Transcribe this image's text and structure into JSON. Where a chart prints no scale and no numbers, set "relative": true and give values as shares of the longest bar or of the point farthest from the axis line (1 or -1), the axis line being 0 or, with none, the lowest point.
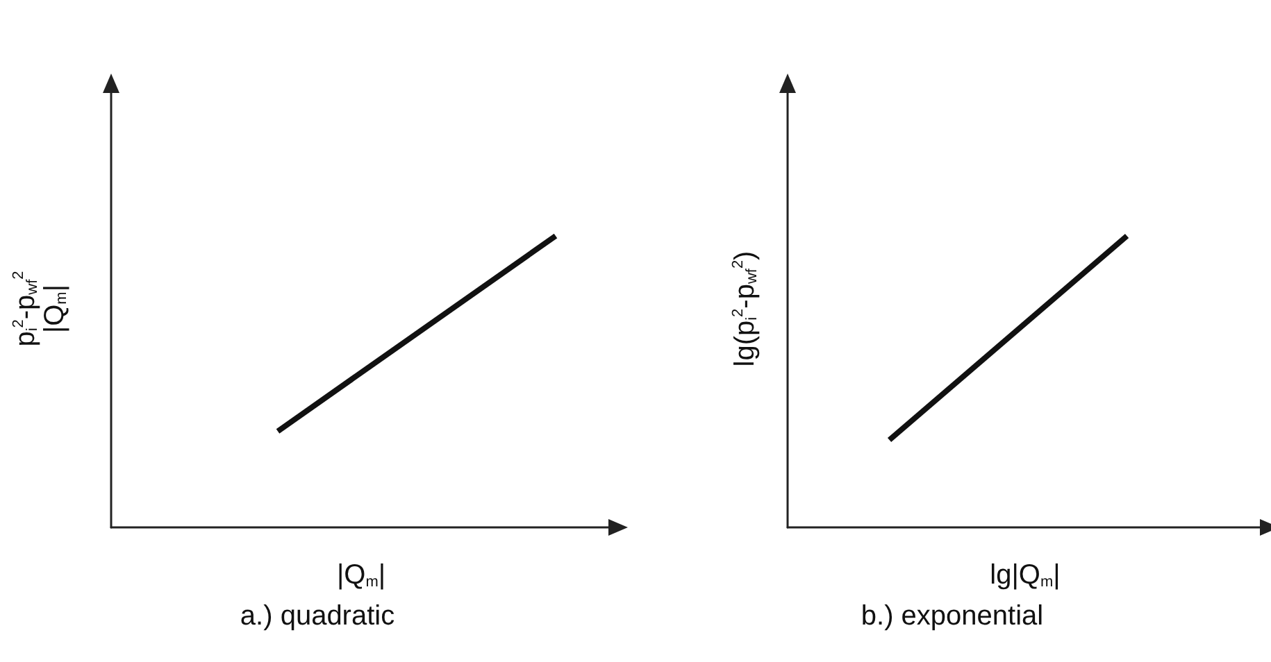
{
  "chart_data": [
    {
      "type": "line",
      "title": "a.) quadratic",
      "xlabel": "|Q$_{m}$|",
      "ylabel": "p$_{i}$$^{2}$-p$_{wf}$$^{2}$\n|Q$_{m}$|",
      "relative": true,
      "grid": false,
      "categories": [
        null,
        null,
        null,
        null,
        null,
        null,
        null,
        null,
        null,
        null
      ],
      "series": [
        {
          "color": "#111111",
          "values": [
            null,
            null,
            null,
            0.33,
            null,
            null,
            null,
            null,
            1,
            null
          ]
        }
      ]
    },
    {
      "type": "line",
      "title": "b.) exponential",
      "xlabel": "lg|Q$_{m}$|",
      "ylabel": "lg(p$_{i}$$^{2}$-p$_{wf}$$^{2}$)",
      "relative": true,
      "grid": false,
      "categories": [
        null,
        null,
        null,
        null,
        null,
        null,
        null,
        null,
        null,
        null,
        null,
        null,
        null,
        null,
        null
      ],
      "series": [
        {
          "color": "#111111",
          "values": [
            null,
            null,
            null,
            0.3,
            null,
            null,
            null,
            null,
            null,
            null,
            1,
            null,
            null,
            null,
            null
          ]
        }
      ]
    }
  ]
}
